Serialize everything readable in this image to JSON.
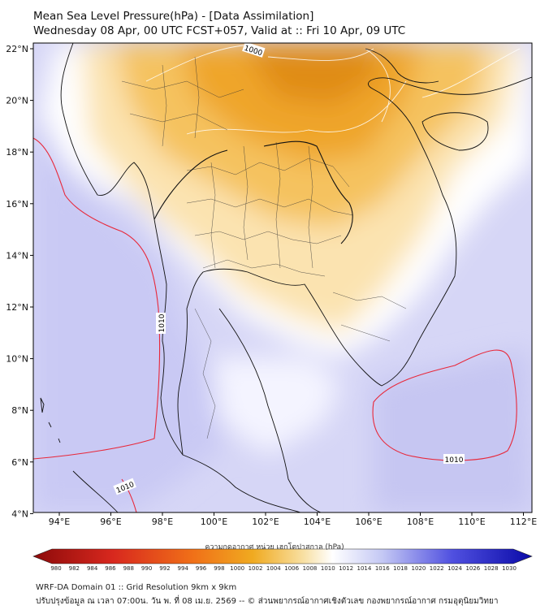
{
  "header": {
    "title": "Mean Sea Level Pressure(hPa) - [Data Assimilation]",
    "subtitle": "Wednesday 08 Apr, 00 UTC FCST+057, Valid at :: Fri 10 Apr, 09 UTC"
  },
  "map": {
    "lat_labels": [
      "22°N",
      "20°N",
      "18°N",
      "16°N",
      "14°N",
      "12°N",
      "10°N",
      "8°N",
      "6°N",
      "4°N"
    ],
    "lon_labels": [
      "94°E",
      "96°E",
      "98°E",
      "100°E",
      "102°E",
      "104°E",
      "106°E",
      "108°E",
      "110°E",
      "112°E"
    ],
    "contour_labels": [
      "1000",
      "1010",
      "1010",
      "1010"
    ],
    "colors": {
      "low": "#f0a818",
      "mid": "#ffffff",
      "high": "#c8c8f4",
      "contour_1010": "#e8283a"
    }
  },
  "colorbar": {
    "title": "ความกดอากาศ หน่วย เฮกโตปาสกาล (hPa)",
    "ticks": [
      "980",
      "982",
      "984",
      "986",
      "988",
      "990",
      "992",
      "994",
      "996",
      "998",
      "1000",
      "1002",
      "1004",
      "1006",
      "1008",
      "1010",
      "1012",
      "1014",
      "1016",
      "1018",
      "1020",
      "1022",
      "1024",
      "1026",
      "1028",
      "1030"
    ]
  },
  "footer": {
    "line1": "WRF-DA Domain 01 :: Grid Resolution 9km x 9km",
    "line2": "ปรับปรุงข้อมูล ณ เวลา 07:00น. วัน พ. ที่ 08 เม.ย. 2569 -- © ส่วนพยากรณ์อากาศเชิงตัวเลข กองพยากรณ์อากาศ กรมอุตุนิยมวิทยา"
  }
}
